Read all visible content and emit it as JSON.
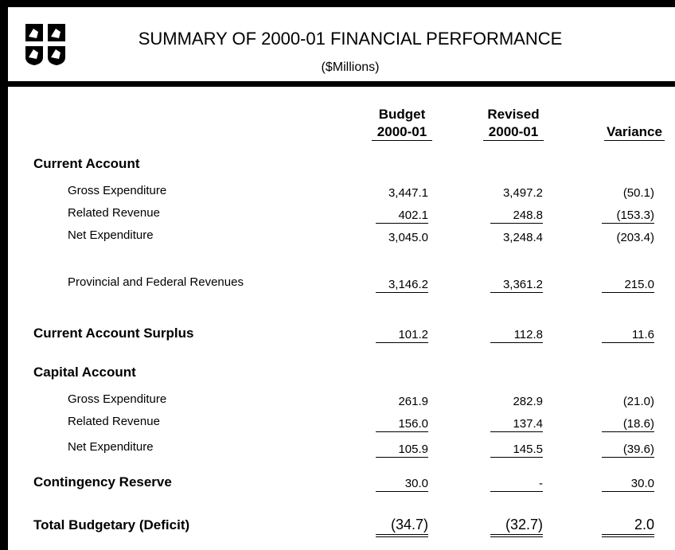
{
  "header": {
    "title": "SUMMARY OF 2000-01 FINANCIAL PERFORMANCE",
    "subtitle": "($Millions)"
  },
  "columns": [
    {
      "line1": "Budget",
      "line2": "2000-01"
    },
    {
      "line1": "Revised",
      "line2": "2000-01"
    },
    {
      "line1": "",
      "line2": "Variance"
    }
  ],
  "rows": [
    {
      "label": "Current Account"
    },
    {
      "label": "Gross Expenditure",
      "values": [
        "3,447.1",
        "3,497.2",
        "(50.1)"
      ]
    },
    {
      "label": "Related Revenue",
      "values": [
        "402.1",
        "248.8",
        "(153.3)"
      ]
    },
    {
      "label": "Net Expenditure",
      "values": [
        "3,045.0",
        "3,248.4",
        "(203.4)"
      ]
    },
    {
      "label": "Provincial and Federal Revenues",
      "values": [
        "3,146.2",
        "3,361.2",
        "215.0"
      ]
    },
    {
      "label": "Current Account Surplus",
      "values": [
        "101.2",
        "112.8",
        "11.6"
      ]
    },
    {
      "label": "Capital Account"
    },
    {
      "label": "Gross Expenditure",
      "values": [
        "261.9",
        "282.9",
        "(21.0)"
      ]
    },
    {
      "label": "Related Revenue",
      "values": [
        "156.0",
        "137.4",
        "(18.6)"
      ]
    },
    {
      "label": "Net Expenditure",
      "values": [
        "105.9",
        "145.5",
        "(39.6)"
      ]
    },
    {
      "label": "Contingency Reserve",
      "values": [
        "30.0",
        "-",
        "30.0"
      ]
    },
    {
      "label": "Total Budgetary (Deficit)",
      "values": [
        "(34.7)",
        "(32.7)",
        "2.0"
      ]
    }
  ]
}
